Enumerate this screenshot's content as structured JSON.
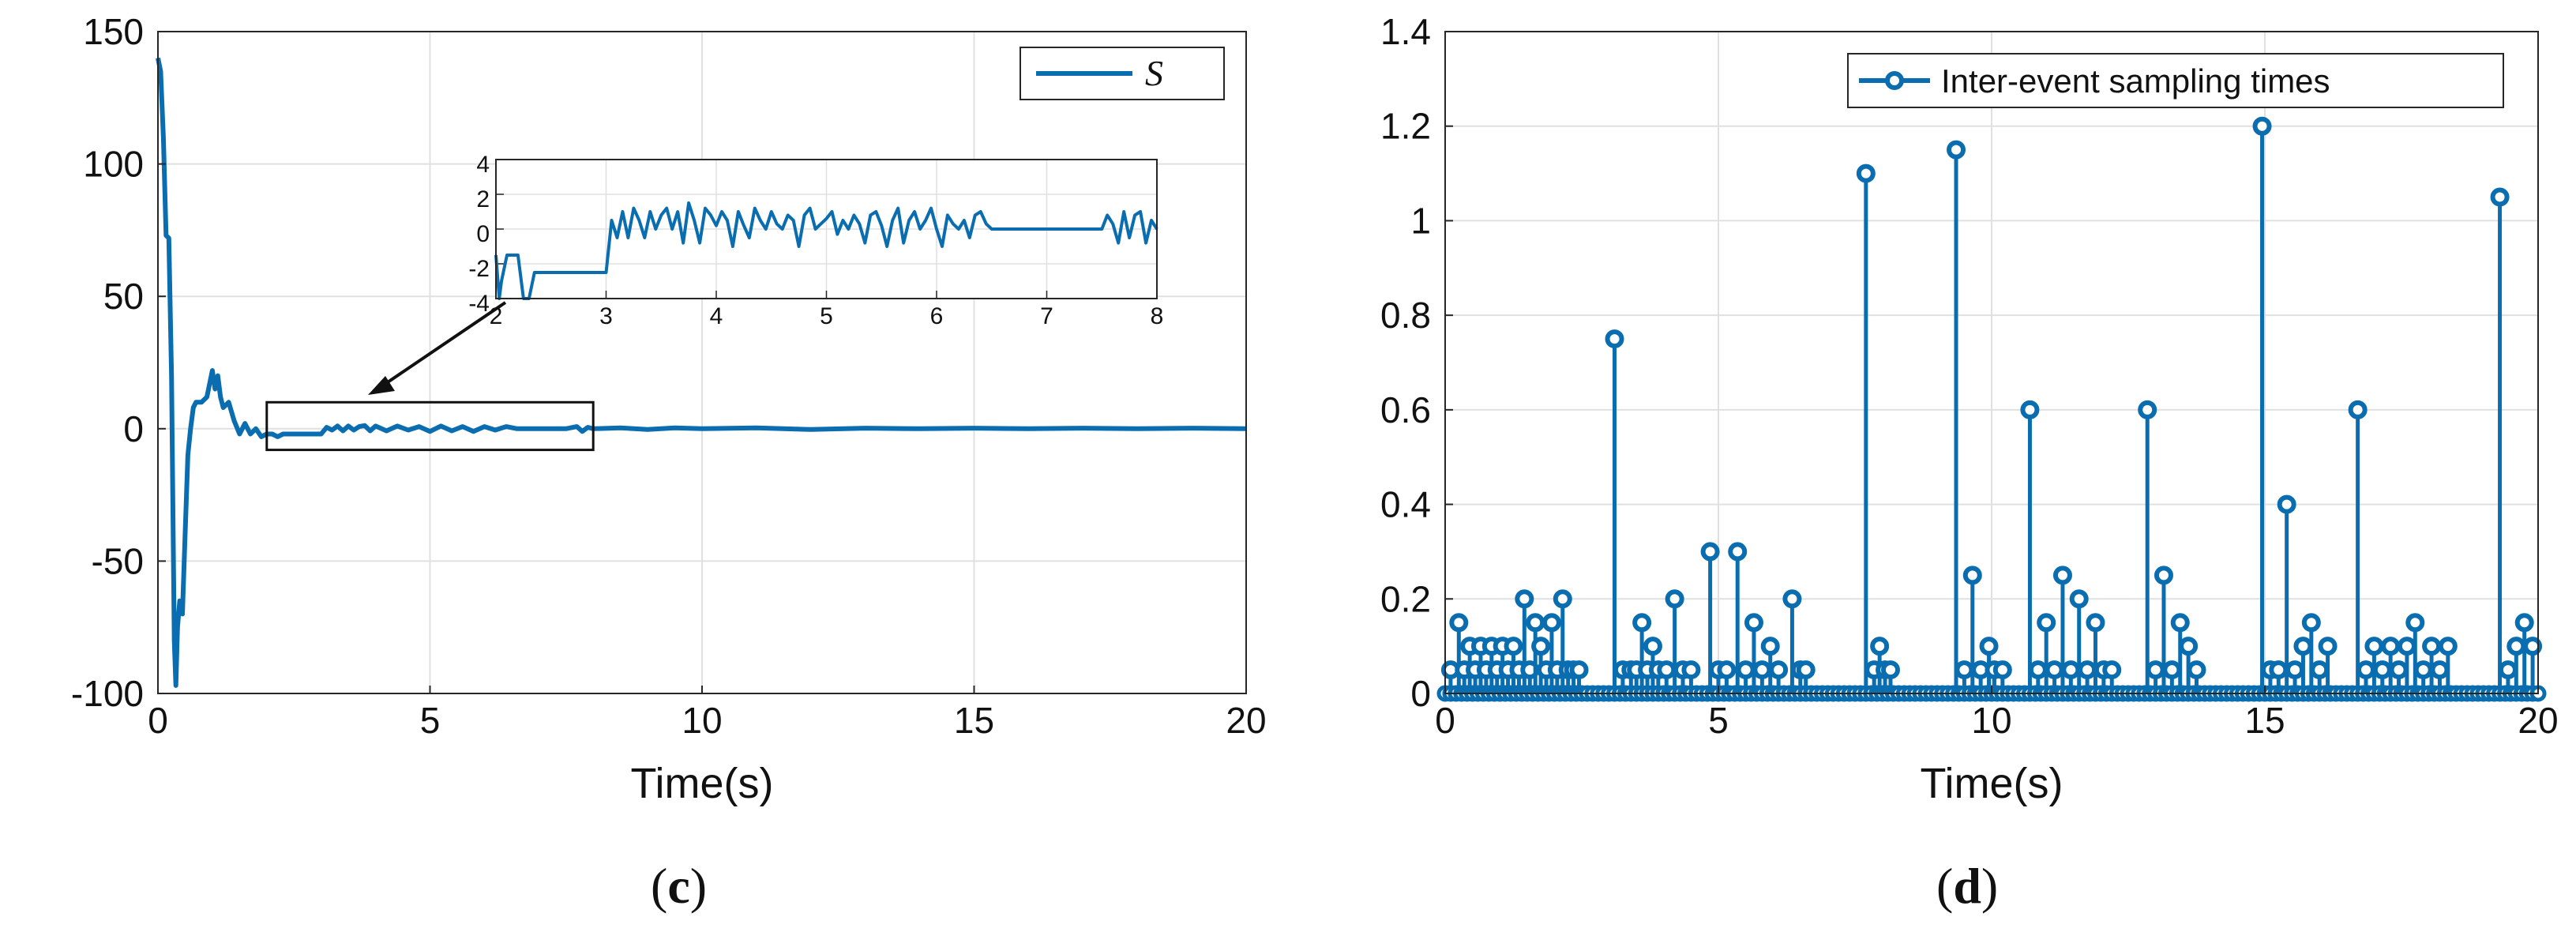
{
  "colors": {
    "series": "#0a6db0",
    "grid": "#e0e0e0",
    "axis": "#262626"
  },
  "chart_data": [
    {
      "type": "line",
      "panel_label": "c",
      "xlabel": "Time(s)",
      "ylabel": "",
      "xlim": [
        0,
        20
      ],
      "ylim": [
        -100,
        150
      ],
      "xticks": [
        0,
        5,
        10,
        15,
        20
      ],
      "yticks": [
        -100,
        -50,
        0,
        50,
        100,
        150
      ],
      "grid": true,
      "legend": {
        "placement": "top-right",
        "entries": [
          {
            "name": "S",
            "marker": "line"
          }
        ]
      },
      "series": [
        {
          "name": "S",
          "x": [
            0,
            0.05,
            0.1,
            0.15,
            0.2,
            0.25,
            0.28,
            0.3,
            0.33,
            0.36,
            0.4,
            0.45,
            0.5,
            0.55,
            0.6,
            0.65,
            0.7,
            0.8,
            0.9,
            1.0,
            1.05,
            1.1,
            1.15,
            1.2,
            1.3,
            1.4,
            1.5,
            1.6,
            1.7,
            1.8,
            1.9,
            2.0,
            2.1,
            2.2,
            2.3,
            2.4,
            2.6,
            2.8,
            3.0,
            3.1,
            3.2,
            3.3,
            3.4,
            3.5,
            3.6,
            3.7,
            3.8,
            3.9,
            4.0,
            4.2,
            4.4,
            4.6,
            4.8,
            5.0,
            5.2,
            5.4,
            5.6,
            5.8,
            6.0,
            6.2,
            6.4,
            6.6,
            7.0,
            7.5,
            7.7,
            7.8,
            7.9,
            8.0,
            8.5,
            9.0,
            9.5,
            10.0,
            11.0,
            12.0,
            13.0,
            14.0,
            15.0,
            16.0,
            17.0,
            18.0,
            19.0,
            20.0
          ],
          "y": [
            140,
            135,
            110,
            73,
            72,
            20,
            -40,
            -80,
            -97,
            -75,
            -65,
            -70,
            -40,
            -10,
            0,
            8,
            10,
            10,
            12,
            22,
            15,
            20,
            12,
            8,
            10,
            3,
            -2,
            2,
            -2,
            0,
            -3,
            -2,
            -2,
            -3,
            -2,
            -2,
            -2,
            -2,
            -2,
            0.5,
            -0.5,
            1,
            -0.8,
            1,
            -0.5,
            0.8,
            1.2,
            -0.8,
            1,
            -0.8,
            1,
            -0.5,
            0.8,
            -1,
            1,
            -0.8,
            0.8,
            -1,
            0.8,
            -0.5,
            0.8,
            0,
            0,
            0,
            0.8,
            -1,
            0.5,
            0,
            0.3,
            -0.3,
            0.3,
            0,
            0.3,
            -0.3,
            0.2,
            0,
            0.2,
            0,
            0.2,
            0,
            0.2,
            0
          ]
        }
      ],
      "annotation": {
        "type": "zoom-box",
        "box_xlim": [
          2,
          8
        ],
        "box_ylim": [
          -8,
          10
        ]
      },
      "inset": {
        "type": "line",
        "xlim": [
          2,
          8
        ],
        "ylim": [
          -4,
          4
        ],
        "xticks": [
          2,
          3,
          4,
          5,
          6,
          7,
          8
        ],
        "yticks": [
          -4,
          -2,
          0,
          2,
          4
        ],
        "grid": true,
        "series": [
          {
            "name": "S",
            "x": [
              2,
              2.03,
              2.05,
              2.1,
              2.2,
              2.25,
              2.3,
              2.35,
              2.4,
              3.0,
              3.05,
              3.1,
              3.15,
              3.2,
              3.25,
              3.3,
              3.35,
              3.4,
              3.45,
              3.5,
              3.55,
              3.6,
              3.65,
              3.7,
              3.75,
              3.8,
              3.85,
              3.9,
              3.95,
              4.0,
              4.05,
              4.1,
              4.15,
              4.2,
              4.25,
              4.3,
              4.35,
              4.4,
              4.45,
              4.5,
              4.55,
              4.6,
              4.65,
              4.7,
              4.75,
              4.8,
              4.85,
              4.9,
              4.95,
              5.0,
              5.05,
              5.1,
              5.15,
              5.2,
              5.25,
              5.3,
              5.35,
              5.4,
              5.45,
              5.5,
              5.55,
              5.6,
              5.65,
              5.7,
              5.75,
              5.8,
              5.85,
              5.9,
              5.95,
              6.0,
              6.05,
              6.1,
              6.15,
              6.2,
              6.25,
              6.3,
              6.35,
              6.4,
              6.45,
              6.5,
              7.5,
              7.55,
              7.6,
              7.65,
              7.7,
              7.75,
              7.8,
              7.85,
              7.9,
              7.95,
              8.0
            ],
            "y": [
              -1.5,
              -4,
              -3,
              -1.5,
              -1.5,
              -4,
              -4,
              -2.5,
              -2.5,
              -2.5,
              0.5,
              -0.5,
              1,
              -0.5,
              1.2,
              0.5,
              -0.5,
              1,
              0,
              0.8,
              1.2,
              0,
              1,
              -0.8,
              1.5,
              0.5,
              -0.8,
              1.2,
              0.8,
              0.2,
              1,
              0.5,
              -1,
              1,
              0.2,
              -0.5,
              1.2,
              0.5,
              0,
              1,
              0.3,
              0,
              0.8,
              0.5,
              -1,
              0.8,
              1.2,
              0,
              0.3,
              0.6,
              1,
              -0.3,
              0.5,
              0,
              0.8,
              0.3,
              -0.8,
              0.8,
              1,
              0.2,
              -1,
              0.5,
              1.2,
              -0.8,
              0.5,
              1,
              0,
              0.5,
              1.2,
              0,
              -1,
              0.8,
              0.3,
              0,
              0.5,
              -0.5,
              0.8,
              1,
              0.3,
              0,
              0,
              0.8,
              0.3,
              -0.8,
              1,
              -0.5,
              0.8,
              1,
              -0.8,
              0.5,
              0
            ]
          }
        ]
      }
    },
    {
      "type": "stem",
      "panel_label": "d",
      "xlabel": "Time(s)",
      "ylabel": "",
      "xlim": [
        0,
        20
      ],
      "ylim": [
        0,
        1.4
      ],
      "xticks": [
        0,
        5,
        10,
        15,
        20
      ],
      "yticks": [
        0,
        0.2,
        0.4,
        0.6,
        0.8,
        1,
        1.2,
        1.4
      ],
      "grid": true,
      "legend": {
        "placement": "top-right",
        "entries": [
          {
            "name": "Inter-event sampling times",
            "marker": "line-circle"
          }
        ]
      },
      "series": [
        {
          "name": "Inter-event sampling times",
          "x": [
            0.1,
            0.25,
            0.35,
            0.45,
            0.55,
            0.65,
            0.75,
            0.85,
            0.95,
            1.05,
            1.15,
            1.25,
            1.35,
            1.45,
            1.55,
            1.65,
            1.75,
            1.85,
            1.95,
            2.05,
            2.15,
            2.25,
            2.35,
            2.45,
            3.1,
            3.25,
            3.4,
            3.5,
            3.6,
            3.7,
            3.8,
            3.9,
            4.05,
            4.2,
            4.35,
            4.5,
            4.85,
            5.0,
            5.15,
            5.35,
            5.5,
            5.65,
            5.8,
            5.95,
            6.1,
            6.35,
            6.5,
            6.6,
            7.7,
            7.85,
            7.95,
            8.05,
            8.15,
            9.35,
            9.5,
            9.65,
            9.8,
            9.95,
            10.05,
            10.2,
            10.7,
            10.85,
            11.0,
            11.15,
            11.3,
            11.45,
            11.6,
            11.75,
            11.9,
            12.05,
            12.2,
            12.85,
            13.0,
            13.15,
            13.3,
            13.45,
            13.6,
            13.75,
            14.95,
            15.1,
            15.25,
            15.4,
            15.55,
            15.7,
            15.85,
            16.0,
            16.15,
            16.7,
            16.85,
            17.0,
            17.15,
            17.3,
            17.45,
            17.6,
            17.75,
            17.9,
            18.05,
            18.2,
            18.35,
            19.3,
            19.45,
            19.6,
            19.75,
            19.9
          ],
          "y": [
            0.05,
            0.15,
            0.05,
            0.1,
            0.05,
            0.1,
            0.05,
            0.1,
            0.05,
            0.1,
            0.05,
            0.1,
            0.05,
            0.2,
            0.05,
            0.15,
            0.1,
            0.05,
            0.15,
            0.05,
            0.2,
            0.05,
            0.05,
            0.05,
            0.75,
            0.05,
            0.05,
            0.05,
            0.15,
            0.05,
            0.1,
            0.05,
            0.05,
            0.2,
            0.05,
            0.05,
            0.3,
            0.05,
            0.05,
            0.3,
            0.05,
            0.15,
            0.05,
            0.1,
            0.05,
            0.2,
            0.05,
            0.05,
            1.1,
            0.05,
            0.1,
            0.05,
            0.05,
            1.15,
            0.05,
            0.25,
            0.05,
            0.1,
            0.05,
            0.05,
            0.6,
            0.05,
            0.15,
            0.05,
            0.25,
            0.05,
            0.2,
            0.05,
            0.15,
            0.05,
            0.05,
            0.6,
            0.05,
            0.25,
            0.05,
            0.15,
            0.1,
            0.05,
            1.2,
            0.05,
            0.05,
            0.4,
            0.05,
            0.1,
            0.15,
            0.05,
            0.1,
            0.6,
            0.05,
            0.1,
            0.05,
            0.1,
            0.05,
            0.1,
            0.15,
            0.05,
            0.1,
            0.05,
            0.1,
            1.05,
            0.05,
            0.1,
            0.15,
            0.1
          ]
        }
      ]
    }
  ]
}
